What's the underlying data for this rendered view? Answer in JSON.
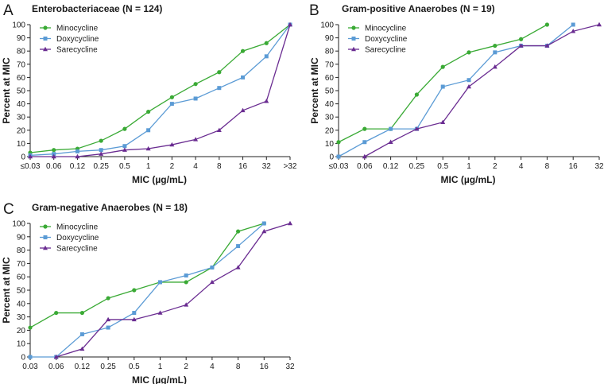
{
  "colors": {
    "Minocycline": "#3aaa35",
    "Doxycycline": "#5b9bd5",
    "Sarecycline": "#6a2c91"
  },
  "chart_data": [
    {
      "type": "line",
      "panel": "A",
      "title": "Enterobacteriaceae (N = 124)",
      "xlabel": "MIC (µg/mL)",
      "ylabel": "Percent at MIC",
      "categories": [
        "≤0.03",
        "0.06",
        "0.12",
        "0.25",
        "0.5",
        "1",
        "2",
        "4",
        "8",
        "16",
        "32",
        ">32"
      ],
      "ylim": [
        0,
        100
      ],
      "yticks": [
        0,
        10,
        20,
        30,
        40,
        50,
        60,
        70,
        80,
        90,
        100
      ],
      "legend_position": "top-left",
      "series": [
        {
          "name": "Minocycline",
          "marker": "circle",
          "x": [
            0,
            1,
            2,
            3,
            4,
            5,
            6,
            7,
            8,
            9,
            10,
            11
          ],
          "values": [
            3,
            5,
            6,
            12,
            21,
            34,
            45,
            55,
            64,
            80,
            86,
            100
          ]
        },
        {
          "name": "Doxycycline",
          "marker": "square",
          "x": [
            0,
            1,
            2,
            3,
            4,
            5,
            6,
            7,
            8,
            9,
            10,
            11
          ],
          "values": [
            1,
            2,
            4,
            5,
            8,
            20,
            40,
            44,
            52,
            60,
            76,
            100
          ]
        },
        {
          "name": "Sarecycline",
          "marker": "triangle",
          "x": [
            0,
            1,
            2,
            3,
            4,
            5,
            6,
            7,
            8,
            9,
            10,
            11
          ],
          "values": [
            0,
            0,
            0,
            2,
            5,
            6,
            9,
            13,
            20,
            35,
            42,
            100
          ]
        }
      ]
    },
    {
      "type": "line",
      "panel": "B",
      "title": "Gram-positive Anaerobes (N = 19)",
      "xlabel": "MIC (µg/mL)",
      "ylabel": "Percent at MIC",
      "categories": [
        "≤0.03",
        "0.06",
        "0.12",
        "0.25",
        "0.5",
        "1",
        "2",
        "4",
        "8",
        "16",
        "32"
      ],
      "ylim": [
        0,
        100
      ],
      "yticks": [
        0,
        10,
        20,
        30,
        40,
        50,
        60,
        70,
        80,
        90,
        100
      ],
      "legend_position": "top-left",
      "series": [
        {
          "name": "Minocycline",
          "marker": "circle",
          "x": [
            0,
            1,
            2,
            3,
            4,
            5,
            6,
            7,
            8
          ],
          "values": [
            11,
            21,
            21,
            47,
            68,
            79,
            84,
            89,
            100
          ]
        },
        {
          "name": "Doxycycline",
          "marker": "square",
          "x": [
            0,
            1,
            2,
            3,
            4,
            5,
            6,
            7,
            8,
            9
          ],
          "values": [
            0,
            11,
            21,
            21,
            53,
            58,
            79,
            84,
            84,
            100
          ]
        },
        {
          "name": "Sarecycline",
          "marker": "triangle",
          "x": [
            1,
            2,
            3,
            4,
            5,
            6,
            7,
            8,
            9,
            10
          ],
          "values": [
            0,
            11,
            21,
            26,
            53,
            68,
            84,
            84,
            95,
            100
          ]
        }
      ]
    },
    {
      "type": "line",
      "panel": "C",
      "title": "Gram-negative Anaerobes (N = 18)",
      "xlabel": "MIC (µg/mL)",
      "ylabel": "Percent at MIC",
      "categories": [
        "0.03",
        "0.06",
        "0.12",
        "0.25",
        "0.5",
        "1",
        "2",
        "4",
        "8",
        "16",
        "32"
      ],
      "ylim": [
        0,
        100
      ],
      "yticks": [
        0,
        10,
        20,
        30,
        40,
        50,
        60,
        70,
        80,
        90,
        100
      ],
      "legend_position": "top-left",
      "series": [
        {
          "name": "Minocycline",
          "marker": "circle",
          "x": [
            0,
            1,
            2,
            3,
            4,
            5,
            6,
            7,
            8,
            9
          ],
          "values": [
            22,
            33,
            33,
            44,
            50,
            56,
            56,
            67,
            94,
            100
          ]
        },
        {
          "name": "Doxycycline",
          "marker": "square",
          "x": [
            0,
            1,
            2,
            3,
            4,
            5,
            6,
            7,
            8,
            9
          ],
          "values": [
            0,
            0,
            17,
            22,
            33,
            56,
            61,
            67,
            83,
            100
          ]
        },
        {
          "name": "Sarecycline",
          "marker": "triangle",
          "x": [
            1,
            2,
            3,
            4,
            5,
            6,
            7,
            8,
            9,
            10
          ],
          "values": [
            0,
            6,
            28,
            28,
            33,
            39,
            56,
            67,
            94,
            100
          ]
        }
      ]
    }
  ]
}
